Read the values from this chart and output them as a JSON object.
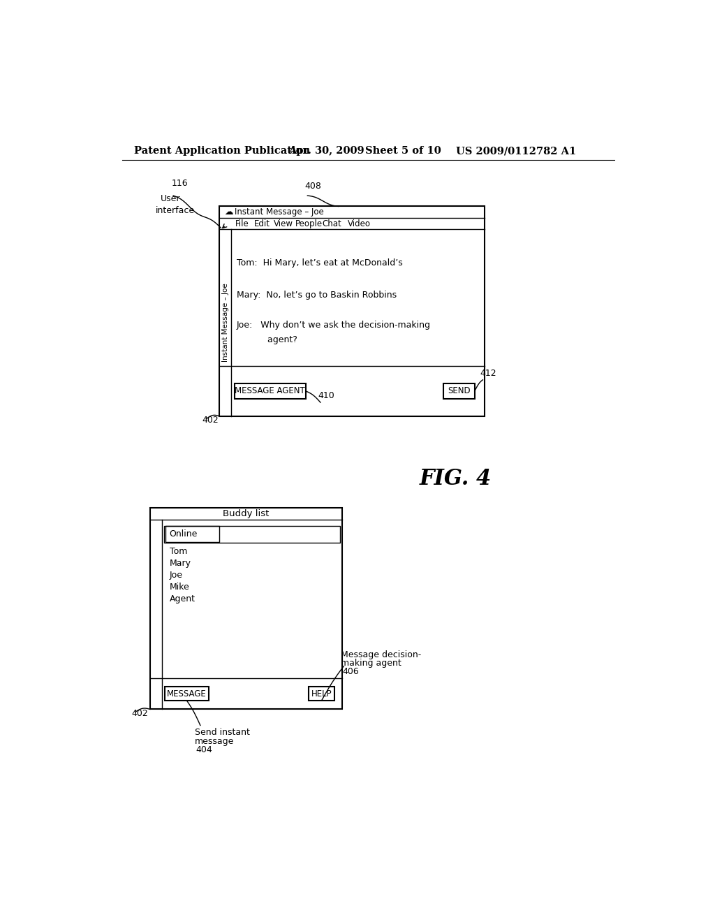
{
  "bg_color": "#ffffff",
  "header_line1": "Patent Application Publication",
  "header_date": "Apr. 30, 2009",
  "header_sheet": "Sheet 5 of 10",
  "header_patent": "US 2009/0112782 A1",
  "fig_label": "FIG. 4",
  "label_116": "116",
  "label_408": "408",
  "label_402_top": "402",
  "label_402_bot": "402",
  "label_410": "410",
  "label_412": "412",
  "label_404": "404",
  "label_406": "406",
  "im_window_title": "Instant Message – Joe",
  "im_menu": [
    "File",
    "Edit",
    "View",
    "People",
    "Chat",
    "Video"
  ],
  "im_msg1": "Tom:  Hi Mary, let’s eat at McDonald’s",
  "im_msg2": "Mary:  No, let’s go to Baskin Robbins",
  "im_msg3_line1": "Joe:   Why don’t we ask the decision-making",
  "im_msg3_line2": "           agent?",
  "im_btn_msg_agent": "MESSAGE AGENT",
  "im_btn_send": "SEND",
  "bl_title": "Buddy list",
  "bl_section": "Online",
  "bl_names": [
    "Tom",
    "Mary",
    "Joe",
    "Mike",
    "Agent"
  ],
  "bl_btn_message": "MESSAGE",
  "bl_btn_help": "HELP",
  "bl_label_send_1": "Send instant",
  "bl_label_send_2": "message",
  "bl_label_msg_agent_1": "Message decision-",
  "bl_label_msg_agent_2": "making agent"
}
